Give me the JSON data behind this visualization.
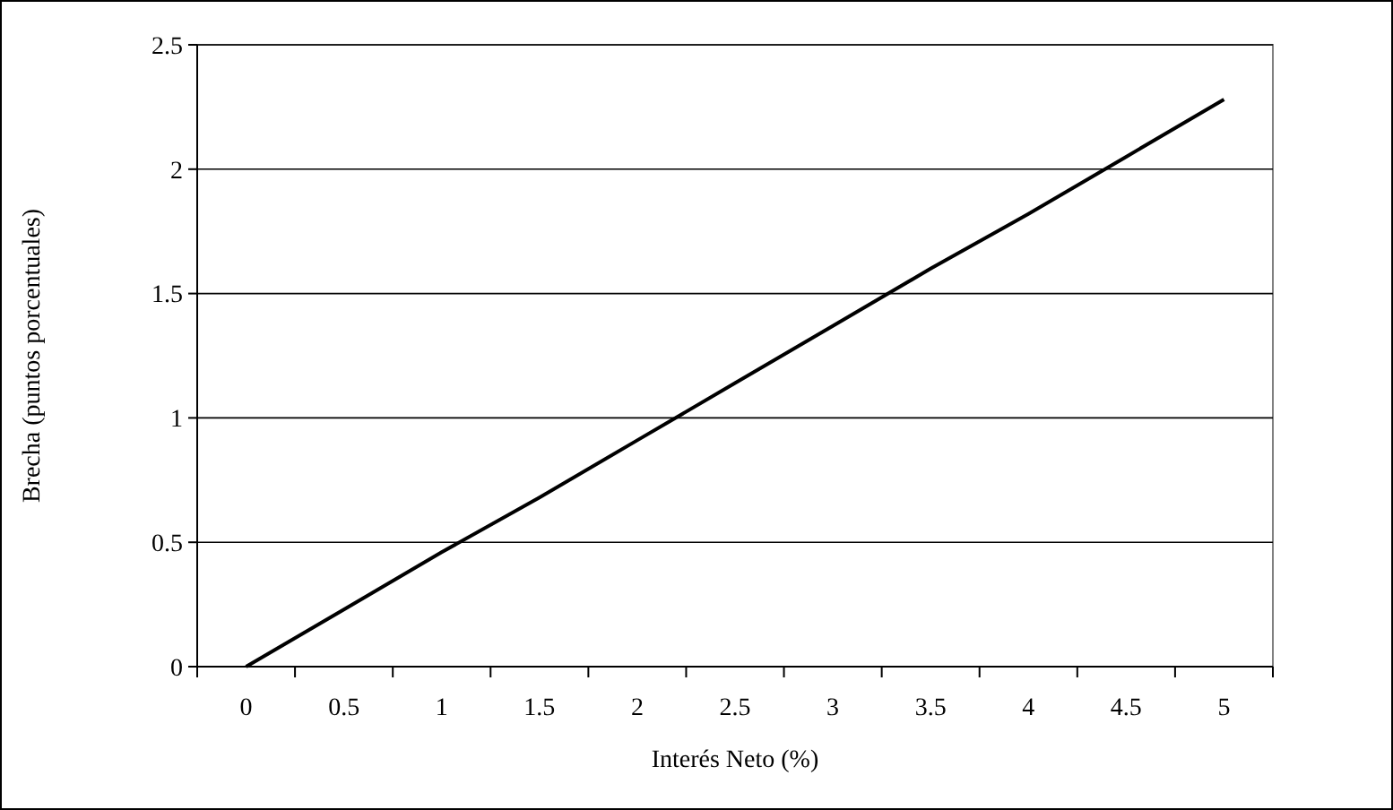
{
  "chart_data": {
    "type": "line",
    "xlabel": "Interés Neto (%)",
    "ylabel": "Brecha (puntos porcentuales)",
    "categories": [
      "0",
      "0.5",
      "1",
      "1.5",
      "2",
      "2.5",
      "3",
      "3.5",
      "4",
      "4.5",
      "5"
    ],
    "series": [
      {
        "color": "#000000",
        "values": [
          0,
          0.23,
          0.46,
          0.68,
          0.91,
          1.14,
          1.37,
          1.6,
          1.82,
          2.05,
          2.28
        ]
      }
    ],
    "ylim": [
      0,
      2.5
    ],
    "yticks": [
      0,
      0.5,
      1,
      1.5,
      2,
      2.5
    ],
    "grid": "y",
    "marker": "none",
    "line_style": "solid"
  }
}
